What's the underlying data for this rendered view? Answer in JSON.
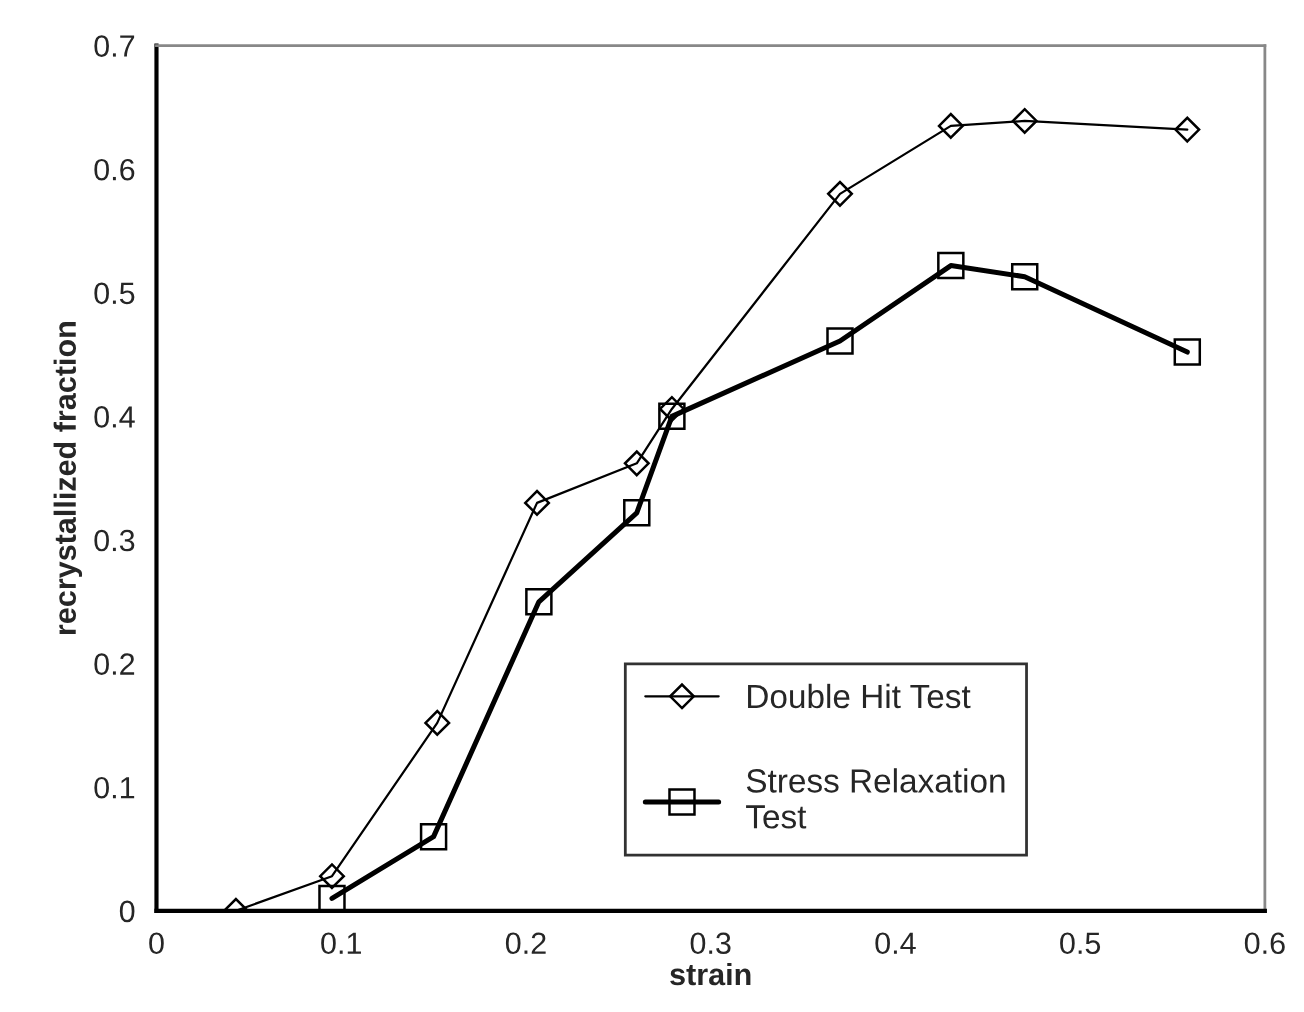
{
  "chart_data": {
    "type": "line",
    "xlabel": "strain",
    "ylabel": "recrystallized fraction",
    "xlim": [
      0,
      0.6
    ],
    "xticks": [
      0,
      0.1,
      0.2,
      0.3,
      0.4,
      0.5,
      0.6
    ],
    "ylim": [
      0,
      0.7
    ],
    "yticks": [
      0,
      0.1,
      0.2,
      0.3,
      0.4,
      0.5,
      0.6,
      0.7
    ],
    "grid": false,
    "legend": "bottom right",
    "series": [
      {
        "name": "Double Hit Test",
        "color": "#000000",
        "marker": "diamond",
        "x": [
          0.043,
          0.095,
          0.152,
          0.206,
          0.26,
          0.279,
          0.37,
          0.43,
          0.47,
          0.558
        ],
        "values": [
          0,
          0.028,
          0.152,
          0.33,
          0.362,
          0.406,
          0.58,
          0.635,
          0.639,
          0.632
        ]
      },
      {
        "name": "Stress Relaxation Test",
        "color": "#000000",
        "marker": "square",
        "x": [
          0.095,
          0.15,
          0.207,
          0.26,
          0.279,
          0.37,
          0.43,
          0.47,
          0.558
        ],
        "values": [
          0.01,
          0.06,
          0.25,
          0.322,
          0.4,
          0.461,
          0.522,
          0.513,
          0.452
        ]
      }
    ]
  }
}
